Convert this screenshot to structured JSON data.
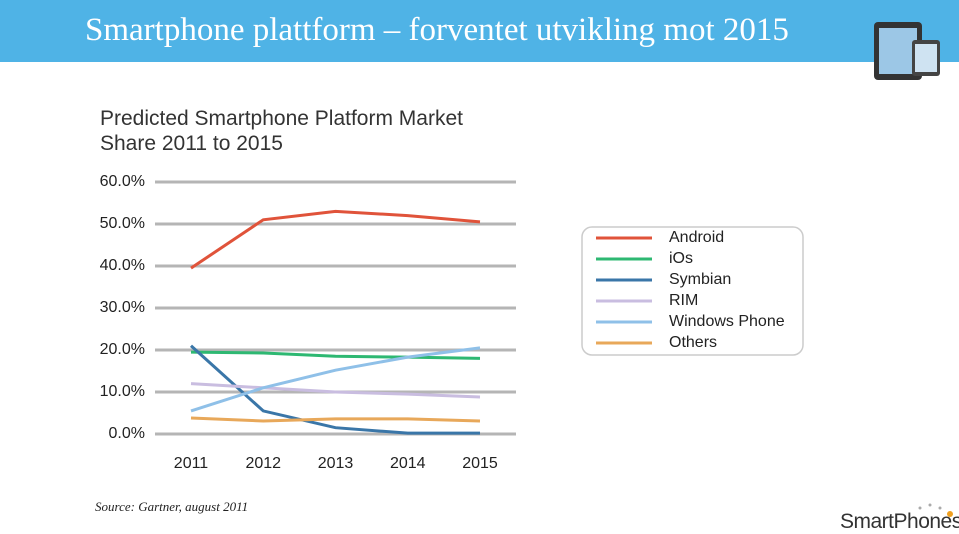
{
  "slide": {
    "title": "Smartphone plattform – forventet utvikling mot 2015",
    "source": "Source: Gartner, august 2011",
    "logo": "SmartPhones"
  },
  "chart_data": {
    "type": "line",
    "title": "Predicted Smartphone Platform Market Share 2011 to 2015",
    "categories": [
      "2011",
      "2012",
      "2013",
      "2014",
      "2015"
    ],
    "series": [
      {
        "name": "Android",
        "color": "#e0533a",
        "values": [
          39.5,
          51,
          53,
          52,
          50.5
        ]
      },
      {
        "name": "iOs",
        "color": "#2eb872",
        "values": [
          19.5,
          19.3,
          18.5,
          18.3,
          18
        ]
      },
      {
        "name": "Symbian",
        "color": "#3a76a8",
        "values": [
          21,
          5.5,
          1.5,
          0.2,
          0.2
        ]
      },
      {
        "name": "RIM",
        "color": "#c9bde0",
        "values": [
          12,
          11,
          10,
          9.5,
          8.8
        ]
      },
      {
        "name": "Windows Phone",
        "color": "#8fc0e8",
        "values": [
          5.5,
          11,
          15.2,
          18.3,
          20.5
        ]
      },
      {
        "name": "Others",
        "color": "#e8a85a",
        "values": [
          3.8,
          3.1,
          3.6,
          3.6,
          3.1
        ]
      }
    ],
    "ylim": [
      0,
      60
    ],
    "yticks": [
      {
        "value": 0,
        "label": "0.0%"
      },
      {
        "value": 10,
        "label": "10.0%"
      },
      {
        "value": 20,
        "label": "20.0%"
      },
      {
        "value": 30,
        "label": "30.0%"
      },
      {
        "value": 40,
        "label": "40.0%"
      },
      {
        "value": 50,
        "label": "50.0%"
      },
      {
        "value": 60,
        "label": "60.0%"
      }
    ],
    "grid": true,
    "legend": "right"
  }
}
